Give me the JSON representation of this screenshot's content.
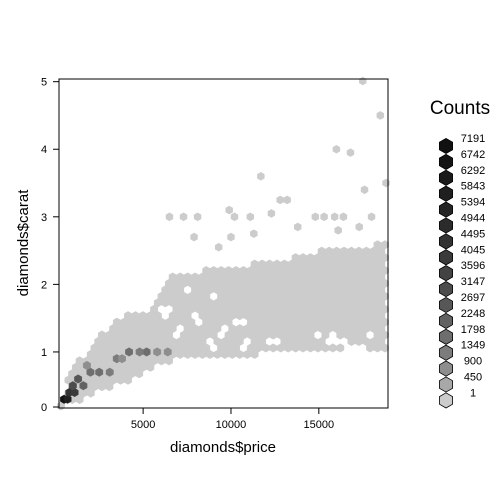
{
  "chart_data": {
    "type": "hexbin",
    "xlabel": "diamonds$price",
    "ylabel": "diamonds$carat",
    "xlim": [
      326,
      18823
    ],
    "ylim": [
      0.2,
      5.01
    ],
    "x_ticks": [
      5000,
      10000,
      15000
    ],
    "y_ticks": [
      0,
      1,
      2,
      3,
      4,
      5
    ],
    "grid": false,
    "legend": {
      "title": "Counts",
      "placement": "right",
      "breaks": [
        "7191",
        "6742",
        "6292",
        "5843",
        "5394",
        "4944",
        "4495",
        "4045",
        "3596",
        "3147",
        "2697",
        "2248",
        "1798",
        "1349",
        "900",
        "450",
        "1"
      ],
      "fills": [
        "#111111",
        "#151515",
        "#1a1a1a",
        "#1f1f1f",
        "#252525",
        "#2b2b2b",
        "#323232",
        "#3a3a3a",
        "#434343",
        "#4c4c4c",
        "#575757",
        "#626262",
        "#6e6e6e",
        "#7c7c7c",
        "#8e8e8e",
        "#a8a8a8",
        "#cccccc"
      ]
    },
    "dense_region": {
      "lower_boundary": [
        [
          326,
          0.2
        ],
        [
          1500,
          0.3
        ],
        [
          2500,
          0.45
        ],
        [
          4000,
          0.55
        ],
        [
          5000,
          0.7
        ],
        [
          6500,
          0.9
        ],
        [
          8000,
          0.9
        ],
        [
          9500,
          0.95
        ],
        [
          12000,
          1.0
        ],
        [
          15000,
          1.02
        ],
        [
          18823,
          1.05
        ]
      ],
      "upper_boundary": [
        [
          326,
          0.3
        ],
        [
          1000,
          0.75
        ],
        [
          1800,
          1.0
        ],
        [
          2500,
          1.25
        ],
        [
          4000,
          1.55
        ],
        [
          5500,
          1.6
        ],
        [
          6500,
          2.2
        ],
        [
          8000,
          2.2
        ],
        [
          10000,
          2.25
        ],
        [
          12500,
          2.35
        ],
        [
          15000,
          2.5
        ],
        [
          18823,
          2.6
        ]
      ]
    },
    "dark_cells": [
      {
        "price": 500,
        "carat": 0.3,
        "count": 7191
      },
      {
        "price": 700,
        "carat": 0.3,
        "count": 5843
      },
      {
        "price": 800,
        "carat": 0.4,
        "count": 4495
      },
      {
        "price": 1100,
        "carat": 0.4,
        "count": 4045
      },
      {
        "price": 1000,
        "carat": 0.5,
        "count": 3147
      },
      {
        "price": 1600,
        "carat": 0.5,
        "count": 2248
      },
      {
        "price": 1300,
        "carat": 0.6,
        "count": 2697
      },
      {
        "price": 2000,
        "carat": 0.7,
        "count": 1798
      },
      {
        "price": 2500,
        "carat": 0.7,
        "count": 1798
      },
      {
        "price": 3100,
        "carat": 0.7,
        "count": 1349
      },
      {
        "price": 1800,
        "carat": 0.8,
        "count": 900
      },
      {
        "price": 3500,
        "carat": 0.9,
        "count": 1349
      },
      {
        "price": 4200,
        "carat": 1.0,
        "count": 1798
      },
      {
        "price": 5200,
        "carat": 1.0,
        "count": 1798
      },
      {
        "price": 4800,
        "carat": 1.0,
        "count": 1349
      },
      {
        "price": 3800,
        "carat": 0.9,
        "count": 900
      },
      {
        "price": 6400,
        "carat": 1.0,
        "count": 900
      },
      {
        "price": 5800,
        "carat": 1.0,
        "count": 900
      }
    ],
    "sparse_cells": [
      [
        17500,
        5.01
      ],
      [
        18500,
        4.5
      ],
      [
        16000,
        4.0
      ],
      [
        16800,
        3.95
      ],
      [
        17600,
        3.4
      ],
      [
        18823,
        3.5
      ],
      [
        11700,
        3.6
      ],
      [
        12800,
        3.25
      ],
      [
        13200,
        3.25
      ],
      [
        12300,
        3.05
      ],
      [
        9900,
        3.1
      ],
      [
        10200,
        3.0
      ],
      [
        6500,
        3.0
      ],
      [
        7300,
        3.0
      ],
      [
        8100,
        3.0
      ],
      [
        11100,
        3.0
      ],
      [
        14800,
        3.0
      ],
      [
        15300,
        3.0
      ],
      [
        15900,
        3.0
      ],
      [
        16400,
        3.0
      ],
      [
        18000,
        3.0
      ],
      [
        13800,
        2.85
      ],
      [
        7900,
        2.7
      ],
      [
        16100,
        2.8
      ],
      [
        11300,
        2.75
      ],
      [
        9300,
        2.55
      ],
      [
        10000,
        2.7
      ],
      [
        17300,
        2.85
      ]
    ],
    "gap_cells": [
      [
        7500,
        1.95
      ],
      [
        9000,
        1.85
      ],
      [
        8000,
        1.5
      ],
      [
        9500,
        1.3
      ],
      [
        10500,
        1.45
      ],
      [
        7000,
        1.3
      ],
      [
        15000,
        1.25
      ],
      [
        15800,
        1.2
      ],
      [
        16500,
        1.15
      ],
      [
        16800,
        1.05
      ],
      [
        17900,
        1.25
      ],
      [
        17400,
        1.05
      ],
      [
        6300,
        1.6
      ],
      [
        10800,
        1.1
      ],
      [
        8900,
        1.1
      ],
      [
        12400,
        1.15
      ]
    ]
  }
}
